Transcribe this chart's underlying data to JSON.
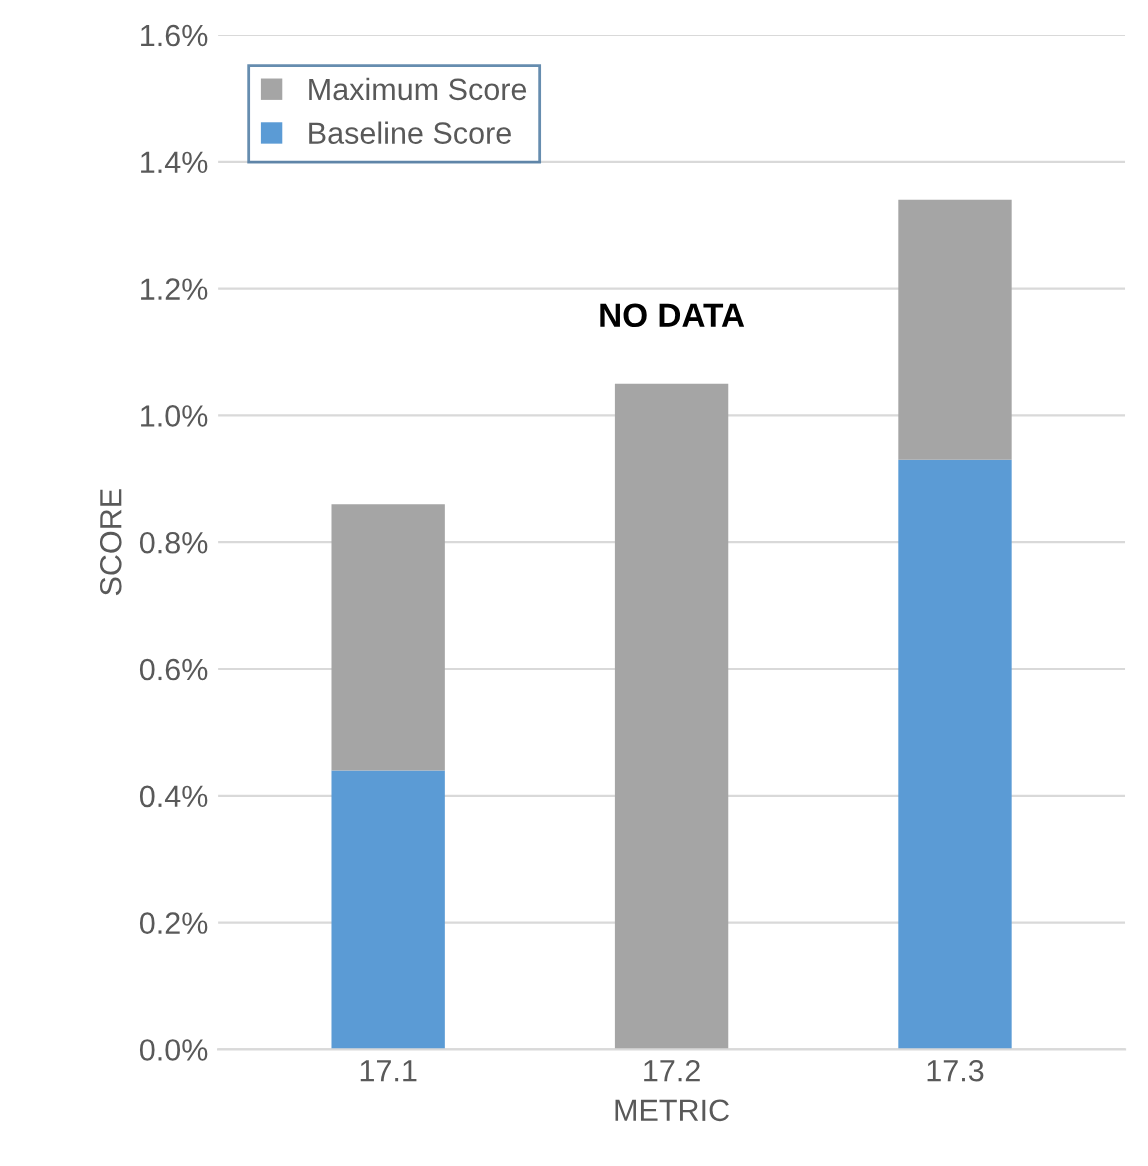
{
  "chart_data": {
    "type": "bar",
    "stacked": true,
    "xlabel": "METRIC",
    "ylabel": "SCORE",
    "categories": [
      "17.1",
      "17.2",
      "17.3"
    ],
    "series": [
      {
        "name": "Baseline Score",
        "color": "#5b9bd5",
        "values": [
          0.44,
          null,
          0.93
        ]
      },
      {
        "name": "Maximum Score",
        "color": "#a5a5a5",
        "values": [
          0.42,
          1.05,
          0.41
        ]
      }
    ],
    "ylim": [
      0,
      1.6
    ],
    "yticks": [
      {
        "value": 0,
        "label": "0.0%"
      },
      {
        "value": 0.2,
        "label": "0.2%"
      },
      {
        "value": 0.4,
        "label": "0.4%"
      },
      {
        "value": 0.6,
        "label": "0.6%"
      },
      {
        "value": 0.8,
        "label": "0.8%"
      },
      {
        "value": 1.0,
        "label": "1.0%"
      },
      {
        "value": 1.2,
        "label": "1.2%"
      },
      {
        "value": 1.4,
        "label": "1.4%"
      },
      {
        "value": 1.6,
        "label": "1.6%"
      }
    ],
    "grid": "y",
    "legend": "top left",
    "annotations": [
      {
        "text": "NO DATA",
        "x": "17.2",
        "y": 1.05
      }
    ]
  }
}
